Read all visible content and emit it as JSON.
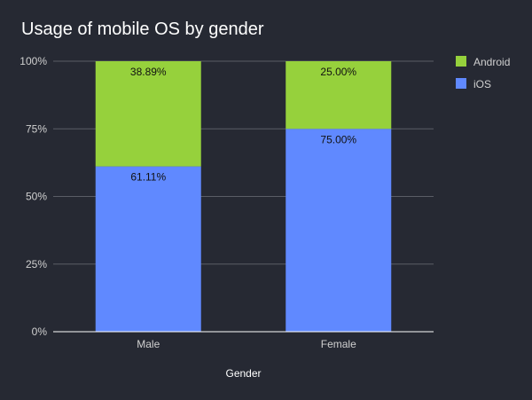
{
  "chart_data": {
    "type": "bar",
    "stacked": true,
    "normalized": true,
    "title": "Usage of mobile OS by gender",
    "xlabel": "Gender",
    "ylabel": "",
    "categories": [
      "Male",
      "Female"
    ],
    "series": [
      {
        "name": "iOS",
        "values": [
          61.11,
          75.0
        ],
        "labels": [
          "61.11%",
          "75.00%"
        ],
        "color": "#6089ff"
      },
      {
        "name": "Android",
        "values": [
          38.89,
          25.0
        ],
        "labels": [
          "38.89%",
          "25.00%"
        ],
        "color": "#96d13c"
      }
    ],
    "legend_order": [
      "Android",
      "iOS"
    ],
    "ylim": [
      0,
      100
    ],
    "yticks": [
      0,
      25,
      50,
      75,
      100
    ],
    "ytick_labels": [
      "0%",
      "25%",
      "50%",
      "75%",
      "100%"
    ],
    "grid": true,
    "legend_position": "right"
  },
  "colors": {
    "background": "#262933",
    "text": "#d0d0d0",
    "title": "#ffffff",
    "grid": "#5a5d66",
    "axis": "#ffffff"
  }
}
